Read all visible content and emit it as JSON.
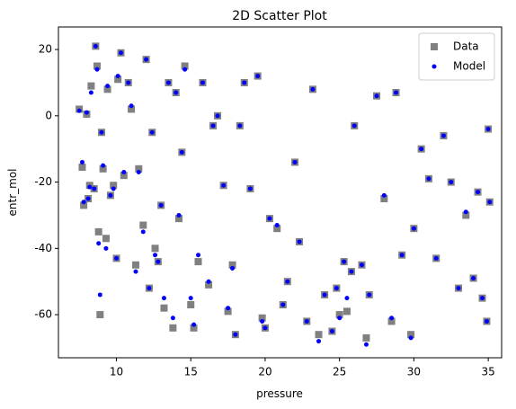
{
  "chart_data": {
    "type": "scatter",
    "title": "2D Scatter Plot",
    "x_label": "pressure",
    "y_label": "entr_mol",
    "x": [
      7.5,
      7.7,
      7.8,
      8.0,
      8.1,
      8.2,
      8.3,
      8.5,
      8.6,
      8.7,
      8.8,
      8.9,
      9.0,
      9.1,
      9.3,
      9.4,
      9.6,
      9.8,
      10.0,
      10.1,
      10.3,
      10.5,
      10.8,
      11.0,
      11.3,
      11.5,
      11.8,
      12.0,
      12.2,
      12.4,
      12.6,
      12.8,
      13.0,
      13.2,
      13.5,
      13.8,
      14.0,
      14.2,
      14.4,
      14.6,
      15.0,
      15.2,
      15.5,
      15.8,
      16.2,
      16.5,
      16.8,
      17.2,
      17.5,
      17.8,
      18.0,
      18.3,
      18.6,
      19.0,
      19.5,
      19.8,
      20.0,
      20.3,
      20.8,
      21.2,
      21.5,
      22.0,
      22.3,
      22.8,
      23.2,
      23.6,
      24.0,
      24.5,
      24.8,
      25.0,
      25.3,
      25.5,
      25.8,
      26.0,
      26.5,
      26.8,
      27.0,
      27.5,
      28.0,
      28.5,
      28.8,
      29.2,
      29.8,
      30.0,
      30.5,
      31.0,
      31.5,
      32.0,
      32.5,
      33.0,
      33.5,
      34.0,
      34.3,
      34.6,
      34.9,
      35.0,
      35.1
    ],
    "series": [
      {
        "name": "Data",
        "color": "#808080",
        "marker": "square",
        "values": [
          2,
          -15.5,
          -27,
          0.5,
          -25,
          -21,
          9,
          -22,
          21,
          15,
          -35,
          -60,
          -5,
          -16,
          -37,
          8,
          -24,
          -21,
          -43,
          11,
          19,
          -18,
          10,
          2,
          -45,
          -16,
          -33,
          17,
          -52,
          -5,
          -40,
          -44,
          -27,
          -58,
          10,
          -64,
          7,
          -31,
          -11,
          15,
          -57,
          -64,
          -44,
          10,
          -51,
          -3,
          0,
          -21,
          -59,
          -45,
          -66,
          -3,
          10,
          -22,
          12,
          -61,
          -64,
          -31,
          -34,
          -57,
          -50,
          -14,
          -38,
          -62,
          8,
          -66,
          -54,
          -65,
          -52,
          -60,
          -44,
          -59,
          -47,
          -3,
          -45,
          -67,
          -54,
          6,
          -25,
          -62,
          7,
          -42,
          -66,
          -34,
          -10,
          -19,
          -43,
          -6,
          -20,
          -52,
          -30,
          -49,
          -23,
          -55,
          -62,
          -4,
          -26
        ]
      },
      {
        "name": "Model",
        "color": "#0000ff",
        "marker": "circle",
        "values": [
          1.5,
          -14,
          -26,
          1,
          -25,
          -21.5,
          7,
          -22,
          21,
          14,
          -38.5,
          -54,
          -5,
          -15,
          -40,
          9,
          -24,
          -22,
          -43,
          12,
          19,
          -17,
          10,
          3,
          -47,
          -17,
          -35,
          17,
          -52,
          -5,
          -42,
          -44,
          -27,
          -55,
          10,
          -61,
          7,
          -30,
          -11,
          14,
          -55,
          -63,
          -42,
          10,
          -50,
          -3,
          0,
          -21,
          -58,
          -46,
          -66,
          -3,
          10,
          -22,
          12,
          -62,
          -64,
          -31,
          -33,
          -57,
          -50,
          -14,
          -38,
          -62,
          8,
          -68,
          -54,
          -65,
          -52,
          -61,
          -44,
          -55,
          -47,
          -3,
          -45,
          -69,
          -54,
          6,
          -24,
          -61,
          7,
          -42,
          -67,
          -34,
          -10,
          -19,
          -43,
          -6,
          -20,
          -52,
          -29,
          -49,
          -23,
          -55,
          -62,
          -4,
          -26
        ]
      }
    ],
    "xlim": [
      6.1,
      35.9
    ],
    "ylim": [
      -73,
      26.8
    ],
    "xticks": [
      10,
      15,
      20,
      25,
      30,
      35
    ],
    "yticks": [
      -60,
      -40,
      -20,
      0,
      20
    ],
    "legend": "upper right"
  }
}
